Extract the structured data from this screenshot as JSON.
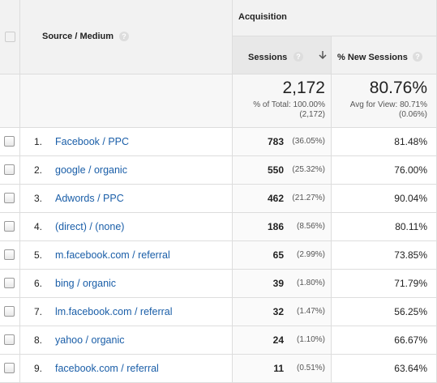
{
  "header": {
    "source_medium": "Source / Medium",
    "group": "Acquisition",
    "sessions": "Sessions",
    "new_sessions": "% New Sessions",
    "help_icon": "?"
  },
  "totals": {
    "sessions": "2,172",
    "sessions_note": "% of Total: 100.00%",
    "sessions_sub": "(2,172)",
    "new_sessions": "80.76%",
    "new_sessions_note": "Avg for View: 80.71%",
    "new_sessions_sub": "(0.06%)"
  },
  "rows": [
    {
      "index": "1.",
      "source": "Facebook / PPC",
      "sessions": "783",
      "share": "(36.05%)",
      "new_sessions": "81.48%"
    },
    {
      "index": "2.",
      "source": "google / organic",
      "sessions": "550",
      "share": "(25.32%)",
      "new_sessions": "76.00%"
    },
    {
      "index": "3.",
      "source": "Adwords / PPC",
      "sessions": "462",
      "share": "(21.27%)",
      "new_sessions": "90.04%"
    },
    {
      "index": "4.",
      "source": "(direct) / (none)",
      "sessions": "186",
      "share": "(8.56%)",
      "new_sessions": "80.11%"
    },
    {
      "index": "5.",
      "source": "m.facebook.com / referral",
      "sessions": "65",
      "share": "(2.99%)",
      "new_sessions": "73.85%"
    },
    {
      "index": "6.",
      "source": "bing / organic",
      "sessions": "39",
      "share": "(1.80%)",
      "new_sessions": "71.79%"
    },
    {
      "index": "7.",
      "source": "lm.facebook.com / referral",
      "sessions": "32",
      "share": "(1.47%)",
      "new_sessions": "56.25%"
    },
    {
      "index": "8.",
      "source": "yahoo / organic",
      "sessions": "24",
      "share": "(1.10%)",
      "new_sessions": "66.67%"
    },
    {
      "index": "9.",
      "source": "facebook.com / referral",
      "sessions": "11",
      "share": "(0.51%)",
      "new_sessions": "63.64%"
    }
  ]
}
